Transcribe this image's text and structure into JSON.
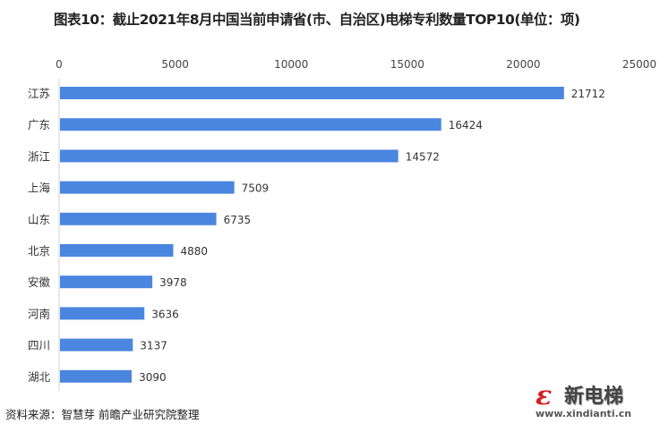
{
  "chart_data": {
    "type": "bar",
    "orientation": "horizontal",
    "title": "图表10：截止2021年8月中国当前申请省(市、自治区)电梯专利数量TOP10(单位：项)",
    "categories": [
      "江苏",
      "广东",
      "浙江",
      "上海",
      "山东",
      "北京",
      "安徽",
      "河南",
      "四川",
      "湖北"
    ],
    "values": [
      21712,
      16424,
      14572,
      7509,
      6735,
      4880,
      3978,
      3636,
      3137,
      3090
    ],
    "xlim": [
      0,
      25000
    ],
    "x_ticks": [
      "0",
      "5000",
      "10000",
      "15000",
      "20000",
      "25000"
    ],
    "x_axis_position": "top",
    "grid": false,
    "data_labels": true,
    "bar_color": "#4a86e0",
    "xlabel": "",
    "ylabel": ""
  },
  "source": "资料来源：智慧芽 前瞻产业研究院整理",
  "logo": {
    "mark": "ε",
    "name": "新电梯",
    "url": "www.xindianti.cn"
  }
}
